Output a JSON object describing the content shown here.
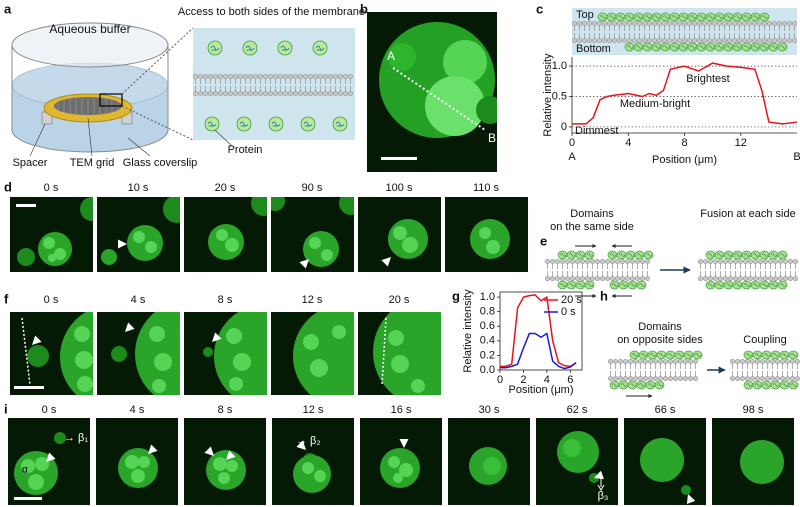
{
  "panels": {
    "a": {
      "letter": "a",
      "buffer": "Aqueous buffer",
      "access": "Access to both sides of the membrane",
      "spacer": "Spacer",
      "grid": "TEM grid",
      "coverslip": "Glass coverslip",
      "protein": "Protein"
    },
    "b": {
      "letter": "b",
      "start": "A",
      "end": "B"
    },
    "c": {
      "letter": "c",
      "top": "Top",
      "bottom": "Bottom"
    },
    "d": {
      "letter": "d",
      "times": [
        "0 s",
        "10 s",
        "20 s",
        "90 s",
        "100 s",
        "110 s"
      ]
    },
    "e": {
      "letter": "e",
      "left": [
        "Domains",
        "on the same side"
      ],
      "right": "Fusion at each side"
    },
    "f": {
      "letter": "f",
      "times": [
        "0 s",
        "4 s",
        "8 s",
        "12 s",
        "20 s"
      ]
    },
    "g": {
      "letter": "g"
    },
    "h": {
      "letter": "h",
      "left": [
        "Domains",
        "on opposite sides"
      ],
      "right": "Coupling"
    },
    "i": {
      "letter": "i",
      "times": [
        "0 s",
        "4 s",
        "8 s",
        "12 s",
        "16 s",
        "30 s",
        "62 s",
        "66 s",
        "98 s"
      ],
      "alpha": "α",
      "beta1": "→ β₁",
      "beta2": "→ β₂",
      "beta3": "β₃"
    }
  },
  "chart_data": [
    {
      "type": "line",
      "x_label": "Position (μm)",
      "y_label": "Relative intensity",
      "x": [
        0,
        1,
        1.5,
        2,
        2.5,
        3,
        4,
        5,
        5.5,
        6,
        6.5,
        7,
        8,
        9,
        10,
        11,
        12,
        13,
        13.5,
        14,
        15,
        16
      ],
      "series": [
        {
          "color": "#e8141c",
          "values": [
            0.05,
            0.05,
            0.15,
            0.45,
            0.5,
            0.52,
            0.55,
            0.5,
            0.55,
            0.52,
            0.6,
            0.95,
            1.0,
            0.92,
            1.05,
            1.0,
            0.98,
            0.95,
            0.6,
            0.08,
            0.05,
            0.08
          ]
        }
      ],
      "xlim": [
        0,
        16
      ],
      "ylim": [
        -0.1,
        1.15
      ],
      "xticks": [
        0,
        4,
        8,
        12
      ],
      "yticks": [
        0,
        0.5,
        {
          "value": 1,
          "label": "1.0"
        }
      ],
      "grid": true,
      "endpoint_labels": [
        {
          "value": 0,
          "label": "A"
        },
        {
          "value": 16,
          "label": "B"
        }
      ],
      "annotations": [
        "Brightest",
        "Medium-bright",
        "Dimmest"
      ]
    },
    {
      "type": "line",
      "x_label": "Position (μm)",
      "y_label": "Relative intensity",
      "x": [
        0,
        0.5,
        1,
        1.5,
        2,
        2.5,
        3,
        3.5,
        4,
        4.5,
        5,
        5.5,
        6,
        6.5
      ],
      "series": [
        {
          "name": "20 s",
          "color": "#e8141c",
          "values": [
            0.05,
            0.05,
            0.08,
            0.85,
            1.0,
            1.02,
            1.03,
            0.95,
            1.0,
            0.4,
            0.1,
            0.06,
            0.05,
            0.1
          ]
        },
        {
          "name": "0 s",
          "color": "#1a1adb",
          "values": [
            0.03,
            0.03,
            0.05,
            0.08,
            0.3,
            0.5,
            0.5,
            0.45,
            0.5,
            0.12,
            0.05,
            0.02,
            0.04,
            0.1
          ]
        }
      ],
      "xlim": [
        0,
        7
      ],
      "ylim": [
        0,
        1.07
      ],
      "xticks": [
        0,
        2,
        4,
        6
      ],
      "yticks": [
        {
          "value": 0,
          "label": "0.0"
        },
        0.2,
        0.4,
        0.6,
        0.8,
        {
          "value": 1,
          "label": "1.0"
        }
      ],
      "legend": "upper-right"
    }
  ]
}
